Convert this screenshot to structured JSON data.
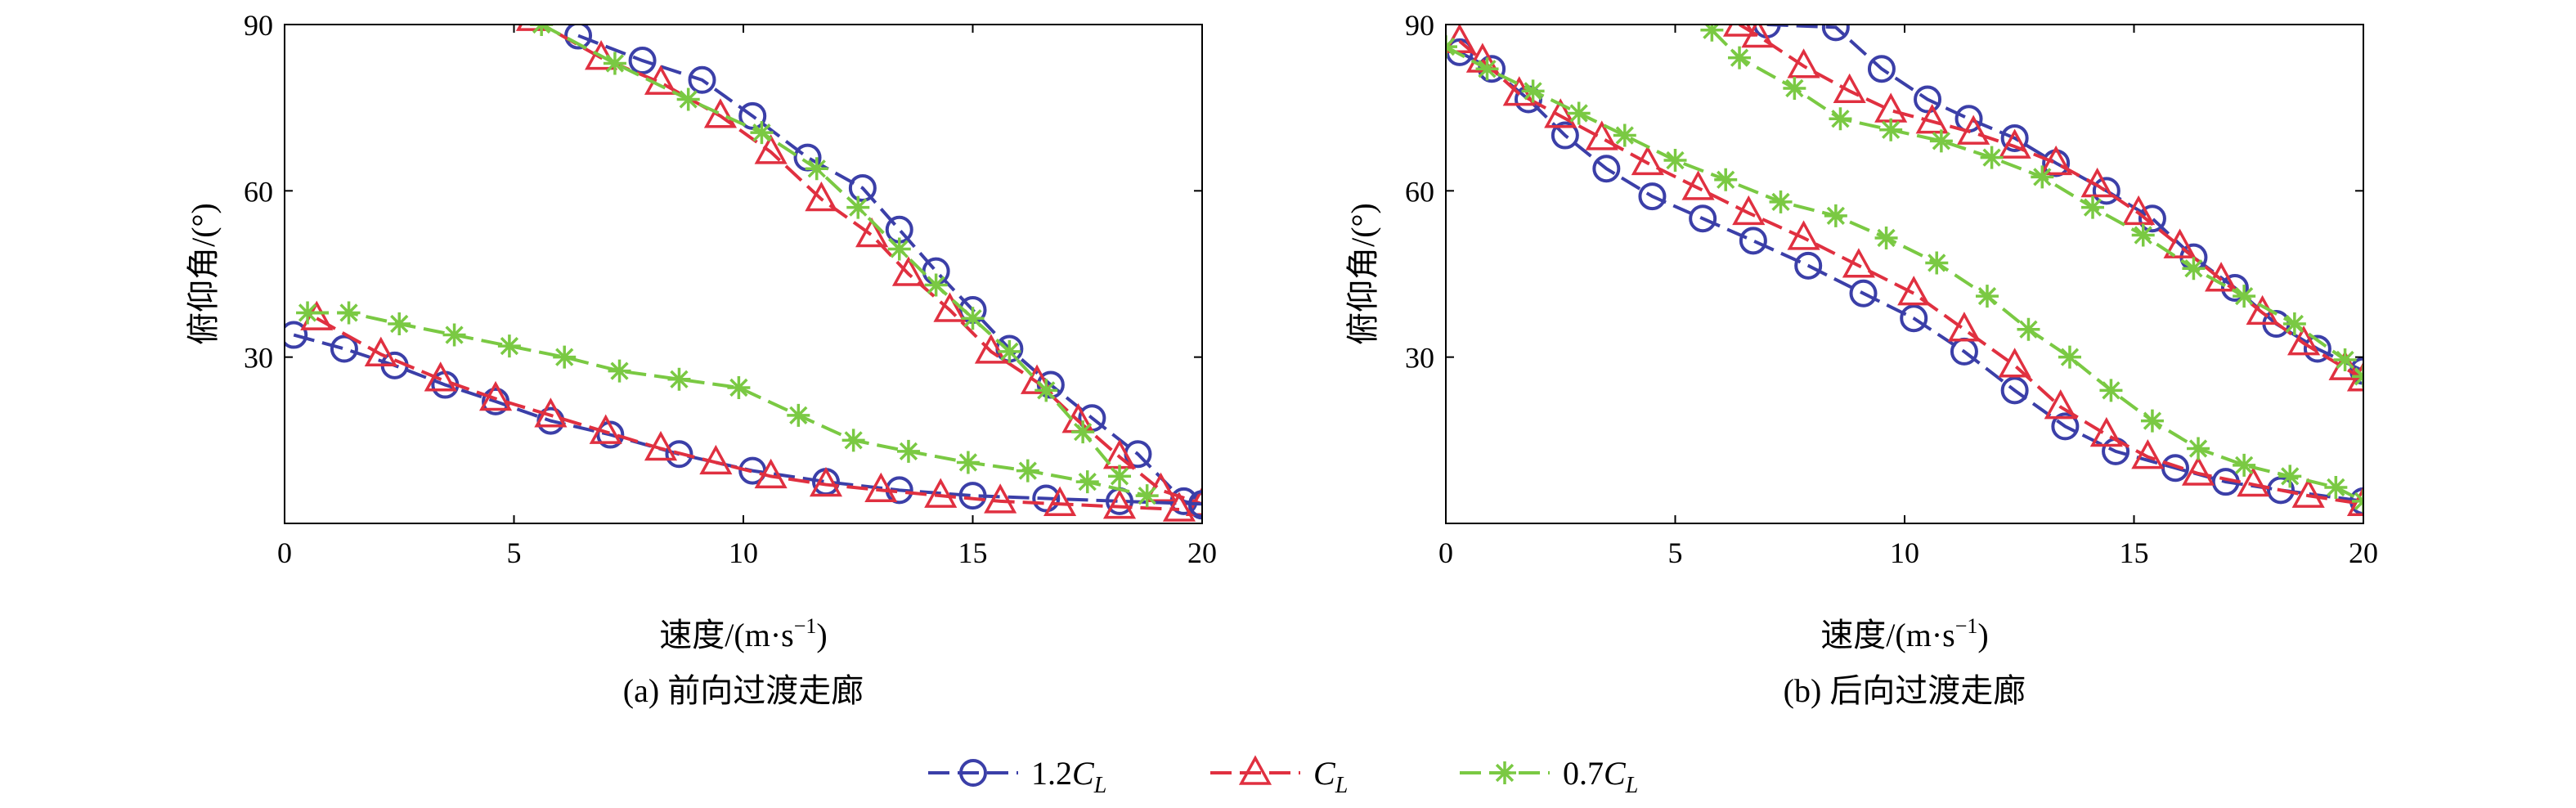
{
  "colors": {
    "series_1_2CL": "#3b3fa8",
    "series_CL": "#e03040",
    "series_0_7CL": "#7ac943"
  },
  "legend": [
    {
      "name": "1.2CL",
      "prefix": "1.2",
      "symbol": "C",
      "subscript": "L",
      "color": "#3b3fa8",
      "marker": "circle"
    },
    {
      "name": "CL",
      "prefix": "",
      "symbol": "C",
      "subscript": "L",
      "color": "#e03040",
      "marker": "triangle"
    },
    {
      "name": "0.7CL",
      "prefix": "0.7",
      "symbol": "C",
      "subscript": "L",
      "color": "#7ac943",
      "marker": "star"
    }
  ],
  "chart_data": [
    {
      "type": "line",
      "caption": "(a) 前向过渡走廊",
      "xlabel": "速度/(m·s",
      "xlabel_sup": "−1",
      "xlabel_end": ")",
      "ylabel": "俯仰角/(°)",
      "xlim": [
        0,
        20
      ],
      "ylim": [
        0,
        90
      ],
      "xticks": [
        0,
        5,
        10,
        15,
        20
      ],
      "yticks": [
        30,
        60,
        90
      ],
      "series": [
        {
          "name": "1.2CL upper",
          "color": "#3b3fa8",
          "marker": "circle",
          "x": [
            6.4,
            7.8,
            9.1,
            10.2,
            11.4,
            12.6,
            13.4,
            14.2,
            15.0,
            15.8,
            16.7,
            17.6,
            18.6,
            19.6,
            20.0
          ],
          "y": [
            88.0,
            83.5,
            80.0,
            73.5,
            66.0,
            60.5,
            53.0,
            45.5,
            38.5,
            31.5,
            25.0,
            19.0,
            12.5,
            4.0,
            3.2
          ]
        },
        {
          "name": "CL upper",
          "color": "#e03040",
          "marker": "triangle",
          "x": [
            5.4,
            6.9,
            8.2,
            9.5,
            10.6,
            11.7,
            12.8,
            13.6,
            14.5,
            15.4,
            16.4,
            17.3,
            18.2,
            19.1,
            20.0
          ],
          "y": [
            91.0,
            84.0,
            79.5,
            73.5,
            67.0,
            58.5,
            52.0,
            45.0,
            38.5,
            31.0,
            25.5,
            18.5,
            12.0,
            6.0,
            3.5
          ]
        },
        {
          "name": "0.7CL upper",
          "color": "#7ac943",
          "marker": "star",
          "x": [
            5.6,
            7.2,
            8.8,
            10.4,
            11.6,
            12.5,
            13.4,
            14.2,
            15.0,
            15.8,
            16.6,
            17.4,
            18.2
          ],
          "y": [
            90.0,
            83.0,
            76.5,
            70.5,
            64.0,
            57.0,
            49.5,
            43.0,
            37.0,
            31.0,
            24.0,
            16.5,
            8.5
          ]
        },
        {
          "name": "1.2CL lower",
          "color": "#3b3fa8",
          "marker": "circle",
          "x": [
            0.2,
            1.3,
            2.4,
            3.5,
            4.6,
            5.8,
            7.1,
            8.6,
            10.2,
            11.8,
            13.4,
            15.0,
            16.6,
            18.2,
            20.0
          ],
          "y": [
            34.0,
            31.5,
            28.5,
            25.0,
            22.0,
            18.5,
            16.0,
            12.5,
            9.5,
            7.5,
            6.0,
            5.0,
            4.5,
            4.0,
            3.5
          ]
        },
        {
          "name": "CL lower",
          "color": "#e03040",
          "marker": "triangle",
          "x": [
            0.7,
            2.1,
            3.4,
            4.6,
            5.8,
            7.0,
            8.2,
            9.4,
            10.6,
            11.8,
            13.0,
            14.3,
            15.6,
            16.9,
            18.2,
            19.5
          ],
          "y": [
            37.0,
            30.5,
            26.0,
            22.5,
            19.5,
            16.5,
            13.5,
            11.0,
            8.5,
            7.0,
            6.0,
            5.0,
            4.0,
            3.5,
            3.0,
            2.5
          ]
        },
        {
          "name": "0.7CL lower",
          "color": "#7ac943",
          "marker": "star",
          "x": [
            0.5,
            1.4,
            2.5,
            3.7,
            4.9,
            6.1,
            7.3,
            8.6,
            9.9,
            11.2,
            12.4,
            13.6,
            14.9,
            16.2,
            17.5,
            18.8
          ],
          "y": [
            38.0,
            38.0,
            36.0,
            34.0,
            32.0,
            30.0,
            27.5,
            26.0,
            24.5,
            19.5,
            15.0,
            13.0,
            11.0,
            9.5,
            7.5,
            5.0
          ]
        }
      ]
    },
    {
      "type": "line",
      "caption": "(b) 后向过渡走廊",
      "xlabel": "速度/(m·s",
      "xlabel_sup": "−1",
      "xlabel_end": ")",
      "ylabel": "俯仰角/(°)",
      "xlim": [
        0,
        20
      ],
      "ylim": [
        0,
        90
      ],
      "xticks": [
        0,
        5,
        10,
        15,
        20
      ],
      "yticks": [
        30,
        60,
        90
      ],
      "series": [
        {
          "name": "1.2CL upper",
          "color": "#3b3fa8",
          "marker": "circle",
          "x": [
            7.0,
            8.5,
            9.5,
            10.5,
            11.4,
            12.4,
            13.3,
            14.4,
            15.4,
            16.3,
            17.2,
            18.1,
            19.0,
            20.0
          ],
          "y": [
            90.0,
            89.5,
            82.0,
            76.5,
            73.0,
            69.5,
            65.0,
            60.0,
            55.0,
            48.0,
            42.5,
            36.0,
            31.5,
            27.5
          ]
        },
        {
          "name": "CL upper",
          "color": "#e03040",
          "marker": "triangle",
          "x": [
            6.4,
            6.8,
            7.8,
            8.8,
            9.7,
            10.6,
            11.5,
            12.4,
            13.3,
            14.2,
            15.1,
            16.0,
            16.9,
            17.8,
            18.7,
            19.6,
            20.0
          ],
          "y": [
            90.0,
            88.0,
            82.5,
            78.0,
            74.5,
            72.5,
            70.5,
            68.0,
            65.0,
            61.0,
            56.0,
            50.0,
            44.0,
            38.0,
            32.5,
            28.0,
            26.0
          ]
        },
        {
          "name": "0.7CL upper",
          "color": "#7ac943",
          "marker": "star",
          "x": [
            5.8,
            6.4,
            7.6,
            8.6,
            9.7,
            10.8,
            11.9,
            13.0,
            14.1,
            15.2,
            16.3,
            17.4,
            18.5,
            19.6,
            20.0
          ],
          "y": [
            89.0,
            84.0,
            78.5,
            73.0,
            71.0,
            69.0,
            66.0,
            62.5,
            57.0,
            52.0,
            46.0,
            41.0,
            36.0,
            29.5,
            26.5
          ]
        },
        {
          "name": "1.2CL lower",
          "color": "#3b3fa8",
          "marker": "circle",
          "x": [
            0.3,
            1.0,
            1.8,
            2.6,
            3.5,
            4.5,
            5.6,
            6.7,
            7.9,
            9.1,
            10.2,
            11.3,
            12.4,
            13.5,
            14.6,
            15.9,
            17.0,
            18.2,
            20.0
          ],
          "y": [
            85.0,
            82.0,
            76.5,
            70.0,
            64.0,
            59.0,
            55.0,
            51.0,
            46.5,
            41.5,
            37.0,
            31.0,
            24.0,
            17.5,
            13.0,
            10.0,
            7.5,
            6.0,
            4.0
          ]
        },
        {
          "name": "CL lower",
          "color": "#e03040",
          "marker": "triangle",
          "x": [
            0.3,
            0.8,
            1.6,
            2.5,
            3.4,
            4.4,
            5.5,
            6.6,
            7.8,
            9.0,
            10.2,
            11.3,
            12.4,
            13.4,
            14.4,
            15.3,
            16.4,
            17.6,
            18.8,
            20.0
          ],
          "y": [
            87.0,
            83.5,
            77.5,
            73.5,
            69.5,
            65.0,
            60.5,
            56.0,
            51.5,
            46.5,
            41.5,
            35.0,
            28.5,
            21.0,
            16.0,
            12.0,
            9.0,
            7.0,
            5.0,
            3.5
          ]
        },
        {
          "name": "0.7CL lower",
          "color": "#7ac943",
          "marker": "star",
          "x": [
            0.0,
            0.9,
            1.9,
            2.9,
            3.9,
            5.0,
            6.1,
            7.3,
            8.5,
            9.6,
            10.7,
            11.8,
            12.7,
            13.6,
            14.5,
            15.4,
            16.4,
            17.4,
            18.4,
            19.4,
            20.0
          ],
          "y": [
            86.0,
            82.0,
            78.0,
            74.0,
            70.0,
            65.5,
            62.0,
            58.0,
            55.5,
            51.5,
            47.0,
            41.0,
            35.0,
            30.0,
            24.0,
            18.5,
            13.5,
            10.5,
            8.5,
            6.5,
            4.0
          ]
        }
      ]
    }
  ]
}
